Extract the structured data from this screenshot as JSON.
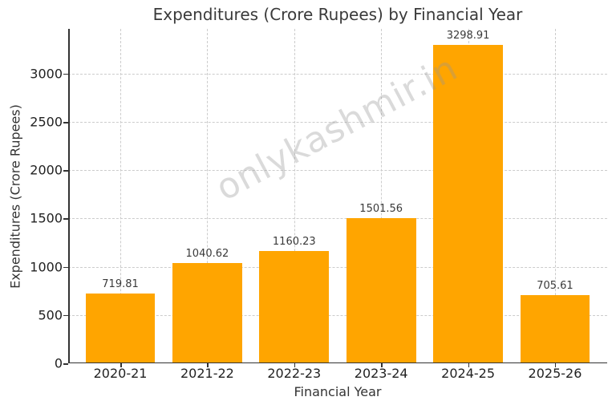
{
  "chart_data": {
    "type": "bar",
    "title": "Expenditures (Crore Rupees) by Financial Year",
    "xlabel": "Financial Year",
    "ylabel": "Expenditures (Crore Rupees)",
    "categories": [
      "2020-21",
      "2021-22",
      "2022-23",
      "2023-24",
      "2024-25",
      "2025-26"
    ],
    "values": [
      719.81,
      1040.62,
      1160.23,
      1501.56,
      3298.91,
      705.61
    ],
    "value_labels": [
      "719.81",
      "1040.62",
      "1160.23",
      "1501.56",
      "3298.91",
      "705.61"
    ],
    "yticks": [
      0,
      500,
      1000,
      1500,
      2000,
      2500,
      3000
    ],
    "ytick_labels": [
      "0",
      "500",
      "1000",
      "1500",
      "2000",
      "2500",
      "3000"
    ],
    "ylim": [
      0,
      3463.86
    ],
    "grid": true,
    "bar_color": "#FFA500",
    "watermark": "onlykashmir.in",
    "legend": null
  }
}
